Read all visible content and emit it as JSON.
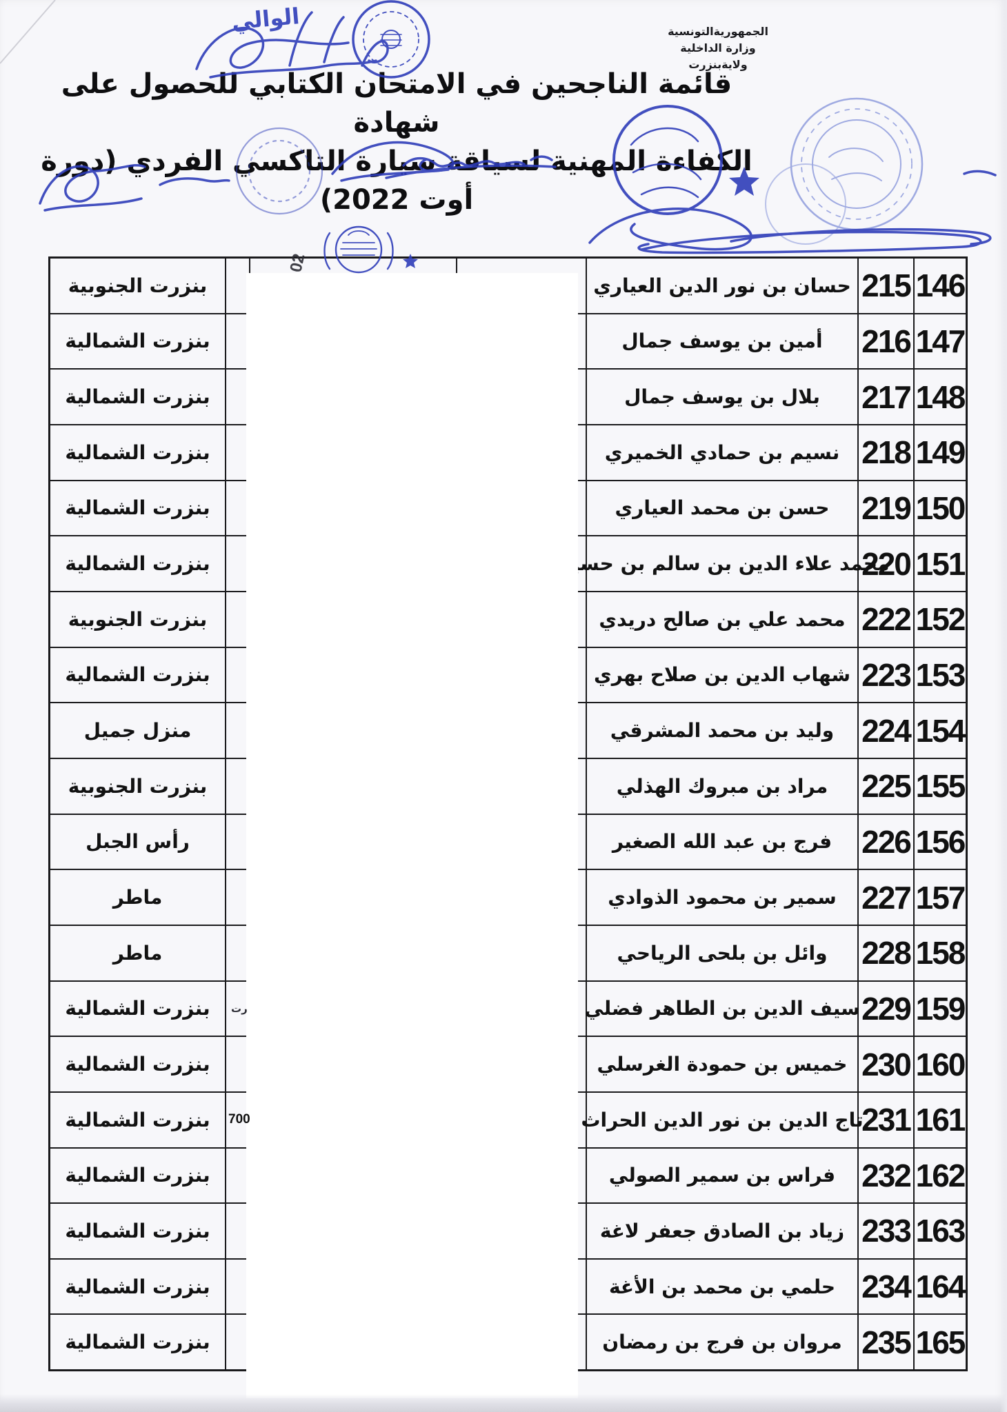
{
  "header": {
    "line1": "الجمهوريةالتونسية",
    "line2": "وزارة الداخلية",
    "line3": "ولايةبنزرت"
  },
  "title": {
    "line1": "قائمة الناجحين في الامتحان الكتابي للحصول على شهادة",
    "line2": "الكفاءة المهنية لسياقة سيارة التاكسي الفردي (دورة أوت 2022)"
  },
  "stamps": {
    "wali_handwriting": "الوالي",
    "rotated_number": "02"
  },
  "colors": {
    "stamp_blue": "#2d3cb8",
    "stamp_light_blue": "#6b7cd2",
    "ink_black": "#1a1a1c"
  },
  "table": {
    "rows": [
      {
        "seq": "146",
        "exam": "215",
        "name": "حسان بن نور الدين العياري",
        "region": "بنزرت الجنوبية",
        "fragment": ""
      },
      {
        "seq": "147",
        "exam": "216",
        "name": "أمين بن يوسف جمال",
        "region": "بنزرت الشمالية",
        "fragment": ""
      },
      {
        "seq": "148",
        "exam": "217",
        "name": "بلال بن يوسف جمال",
        "region": "بنزرت الشمالية",
        "fragment": ""
      },
      {
        "seq": "149",
        "exam": "218",
        "name": "نسيم بن حمادي الخميري",
        "region": "بنزرت الشمالية",
        "fragment": ""
      },
      {
        "seq": "150",
        "exam": "219",
        "name": "حسن بن محمد العياري",
        "region": "بنزرت الشمالية",
        "fragment": ""
      },
      {
        "seq": "151",
        "exam": "220",
        "name": "محمد علاء الدين بن سالم بن حسين",
        "region": "بنزرت الشمالية",
        "fragment": ""
      },
      {
        "seq": "152",
        "exam": "222",
        "name": "محمد علي بن صالح دريدي",
        "region": "بنزرت الجنوبية",
        "fragment": ""
      },
      {
        "seq": "153",
        "exam": "223",
        "name": "شهاب الدين بن صلاح بهري",
        "region": "بنزرت الشمالية",
        "fragment": ""
      },
      {
        "seq": "154",
        "exam": "224",
        "name": "وليد بن محمد المشرقي",
        "region": "منزل جميل",
        "fragment": ""
      },
      {
        "seq": "155",
        "exam": "225",
        "name": "مراد بن مبروك الهذلي",
        "region": "بنزرت الجنوبية",
        "fragment": ""
      },
      {
        "seq": "156",
        "exam": "226",
        "name": "فرج بن عبد الله الصغير",
        "region": "رأس الجبل",
        "fragment": ""
      },
      {
        "seq": "157",
        "exam": "227",
        "name": "سمير بن محمود الذوادي",
        "region": "ماطر",
        "fragment": ""
      },
      {
        "seq": "158",
        "exam": "228",
        "name": "وائل بن بلحى الرياحي",
        "region": "ماطر",
        "fragment": ""
      },
      {
        "seq": "159",
        "exam": "229",
        "name": "سيف الدين بن الطاهر فضلي",
        "region": "بنزرت الشمالية",
        "fragment": "رت"
      },
      {
        "seq": "160",
        "exam": "230",
        "name": "خميس بن حمودة الغرسلي",
        "region": "بنزرت الشمالية",
        "fragment": ""
      },
      {
        "seq": "161",
        "exam": "231",
        "name": "تاج الدين بن نور الدين الحراث",
        "region": "بنزرت الشمالية",
        "fragment": "700"
      },
      {
        "seq": "162",
        "exam": "232",
        "name": "فراس بن سمير الصولي",
        "region": "بنزرت الشمالية",
        "fragment": ""
      },
      {
        "seq": "163",
        "exam": "233",
        "name": "زياد بن الصادق جعفر لاغة",
        "region": "بنزرت الشمالية",
        "fragment": ""
      },
      {
        "seq": "164",
        "exam": "234",
        "name": "حلمي بن محمد بن الأغة",
        "region": "بنزرت الشمالية",
        "fragment": ""
      },
      {
        "seq": "165",
        "exam": "235",
        "name": "مروان بن فرج بن رمضان",
        "region": "بنزرت الشمالية",
        "fragment": ""
      }
    ]
  }
}
